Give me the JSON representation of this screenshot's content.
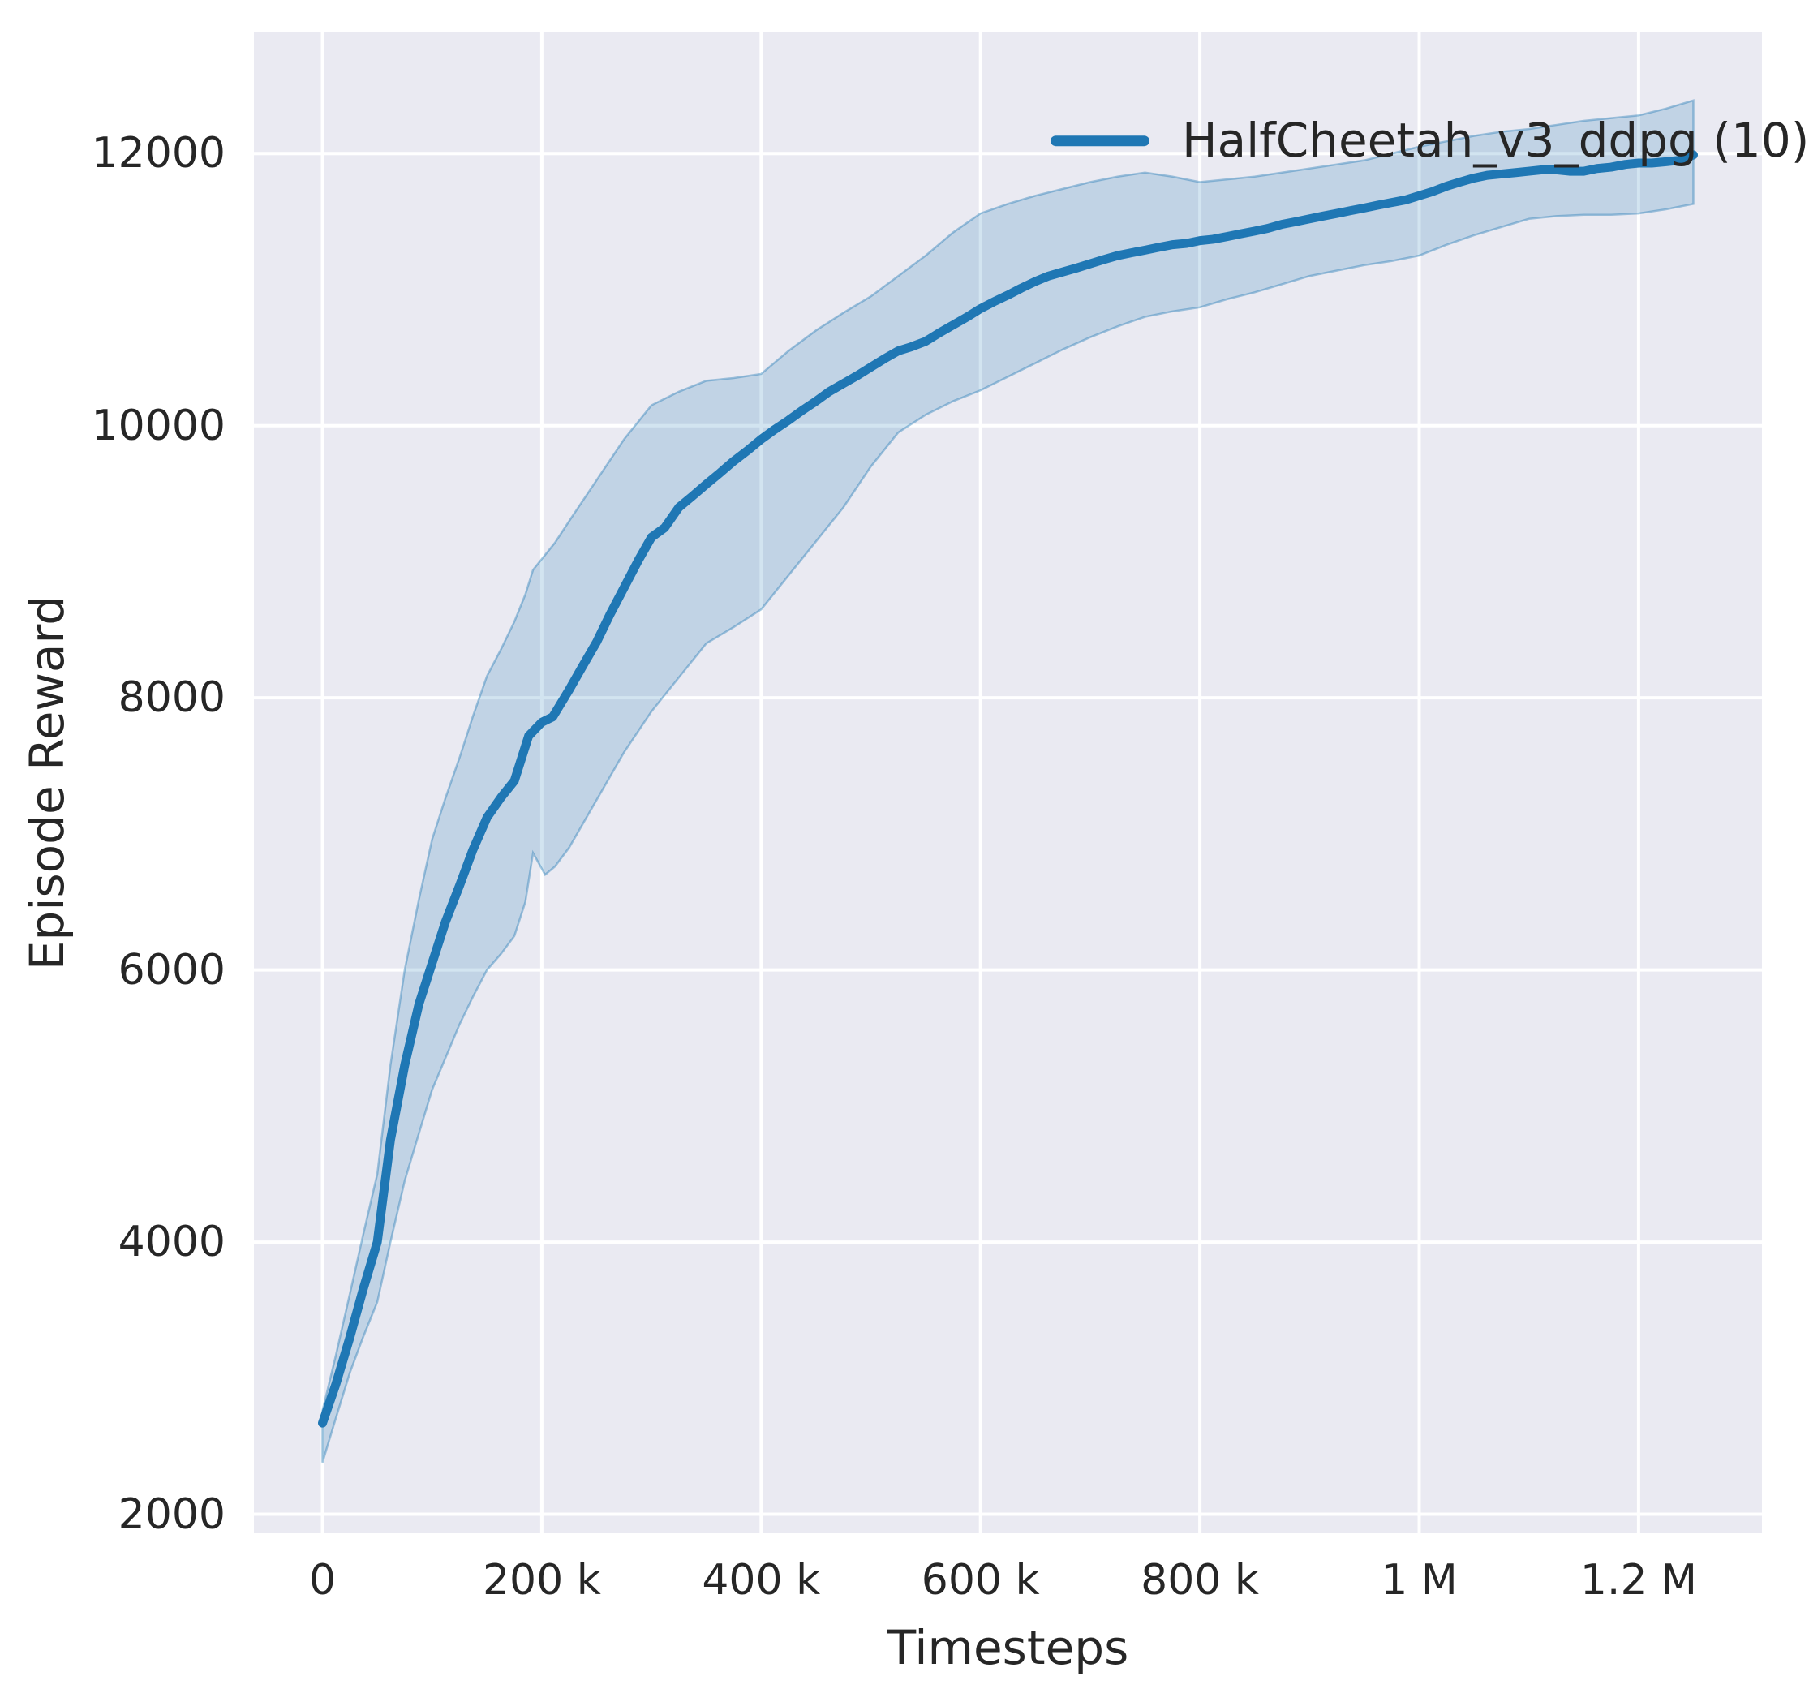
{
  "figure": {
    "background": "#ffffff",
    "plot_background": "#eaeaf2",
    "grid_color": "#ffffff",
    "text_color": "#262626"
  },
  "legend": {
    "label": "HalfCheetah_v3_ddpg (10)",
    "swatch_color": "#1f77b4",
    "position": "upper right"
  },
  "chart_data": {
    "type": "line",
    "title": "",
    "xlabel": "Timesteps",
    "ylabel": "Episode Reward",
    "xlim": [
      -62500,
      1312500
    ],
    "ylim": [
      1860,
      12890
    ],
    "grid": true,
    "x_ticks": [
      {
        "value": 0,
        "label": "0"
      },
      {
        "value": 200000,
        "label": "200 k"
      },
      {
        "value": 400000,
        "label": "400 k"
      },
      {
        "value": 600000,
        "label": "600 k"
      },
      {
        "value": 800000,
        "label": "800 k"
      },
      {
        "value": 1000000,
        "label": "1 M"
      },
      {
        "value": 1200000,
        "label": "1.2 M"
      }
    ],
    "y_ticks": [
      {
        "value": 2000,
        "label": "2000"
      },
      {
        "value": 4000,
        "label": "4000"
      },
      {
        "value": 6000,
        "label": "6000"
      },
      {
        "value": 8000,
        "label": "8000"
      },
      {
        "value": 10000,
        "label": "10000"
      },
      {
        "value": 12000,
        "label": "12000"
      }
    ],
    "series": [
      {
        "name": "HalfCheetah_v3_ddpg (10)",
        "color": "#1f77b4",
        "line_width": 11,
        "band_fill_alpha": 0.2,
        "band_edge_alpha": 0.4,
        "x": [
          0,
          12000,
          25000,
          37000,
          50000,
          62000,
          75000,
          88000,
          100000,
          112000,
          125000,
          137000,
          150000,
          163000,
          175000,
          188000,
          200000,
          210000,
          225000,
          237000,
          250000,
          262000,
          275000,
          288000,
          300000,
          312000,
          325000,
          337000,
          350000,
          362000,
          375000,
          388000,
          400000,
          412000,
          425000,
          437000,
          450000,
          462000,
          475000,
          488000,
          500000,
          512000,
          525000,
          537000,
          550000,
          562000,
          575000,
          588000,
          600000,
          612000,
          625000,
          637000,
          650000,
          662000,
          675000,
          688000,
          700000,
          712000,
          725000,
          737000,
          750000,
          762000,
          775000,
          788000,
          800000,
          812000,
          825000,
          837000,
          850000,
          862000,
          875000,
          888000,
          900000,
          912000,
          925000,
          937000,
          950000,
          962000,
          975000,
          988000,
          1000000,
          1012000,
          1025000,
          1037000,
          1050000,
          1062000,
          1075000,
          1088000,
          1100000,
          1112000,
          1125000,
          1137000,
          1150000,
          1162000,
          1175000,
          1188000,
          1200000,
          1212000,
          1225000,
          1237000,
          1250000
        ],
        "mean": [
          2670,
          2950,
          3300,
          3650,
          4000,
          4750,
          5300,
          5750,
          6050,
          6350,
          6620,
          6880,
          7120,
          7270,
          7390,
          7720,
          7820,
          7860,
          8060,
          8230,
          8410,
          8610,
          8810,
          9010,
          9180,
          9250,
          9400,
          9480,
          9570,
          9650,
          9740,
          9820,
          9900,
          9970,
          10040,
          10110,
          10180,
          10250,
          10310,
          10370,
          10430,
          10490,
          10550,
          10580,
          10620,
          10680,
          10740,
          10800,
          10860,
          10910,
          10960,
          11010,
          11060,
          11100,
          11130,
          11160,
          11190,
          11220,
          11250,
          11270,
          11290,
          11310,
          11330,
          11340,
          11360,
          11370,
          11390,
          11410,
          11430,
          11450,
          11480,
          11500,
          11520,
          11540,
          11560,
          11580,
          11600,
          11620,
          11640,
          11660,
          11690,
          11720,
          11760,
          11790,
          11820,
          11840,
          11850,
          11860,
          11870,
          11880,
          11880,
          11870,
          11870,
          11890,
          11900,
          11920,
          11930,
          11930,
          11940,
          11950,
          11990
        ],
        "band_x": [
          0,
          12000,
          25000,
          37000,
          50000,
          62000,
          75000,
          88000,
          100000,
          112000,
          125000,
          137000,
          150000,
          163000,
          175000,
          185000,
          192000,
          203000,
          212000,
          225000,
          250000,
          275000,
          300000,
          325000,
          350000,
          375000,
          400000,
          425000,
          450000,
          475000,
          500000,
          525000,
          550000,
          575000,
          600000,
          625000,
          650000,
          675000,
          700000,
          725000,
          750000,
          775000,
          800000,
          825000,
          850000,
          875000,
          900000,
          925000,
          950000,
          975000,
          1000000,
          1025000,
          1050000,
          1075000,
          1100000,
          1125000,
          1150000,
          1175000,
          1200000,
          1225000,
          1250000
        ],
        "lower": [
          2380,
          2700,
          3040,
          3300,
          3560,
          4000,
          4450,
          4800,
          5120,
          5350,
          5600,
          5800,
          6000,
          6120,
          6250,
          6500,
          6860,
          6700,
          6760,
          6900,
          7250,
          7600,
          7900,
          8150,
          8400,
          8520,
          8650,
          8900,
          9150,
          9400,
          9700,
          9950,
          10080,
          10180,
          10260,
          10360,
          10460,
          10560,
          10650,
          10730,
          10800,
          10840,
          10870,
          10930,
          10980,
          11040,
          11100,
          11140,
          11180,
          11210,
          11250,
          11330,
          11400,
          11460,
          11520,
          11540,
          11550,
          11550,
          11560,
          11590,
          11630
        ],
        "upper": [
          2760,
          3160,
          3620,
          4050,
          4500,
          5300,
          6000,
          6520,
          6960,
          7260,
          7560,
          7860,
          8160,
          8360,
          8560,
          8760,
          8940,
          9050,
          9140,
          9300,
          9600,
          9900,
          10150,
          10250,
          10330,
          10350,
          10380,
          10550,
          10700,
          10830,
          10950,
          11100,
          11250,
          11420,
          11560,
          11630,
          11690,
          11740,
          11790,
          11830,
          11860,
          11830,
          11790,
          11810,
          11830,
          11860,
          11890,
          11920,
          11950,
          12000,
          12050,
          12090,
          12130,
          12160,
          12180,
          12210,
          12240,
          12260,
          12280,
          12330,
          12390
        ]
      }
    ]
  }
}
